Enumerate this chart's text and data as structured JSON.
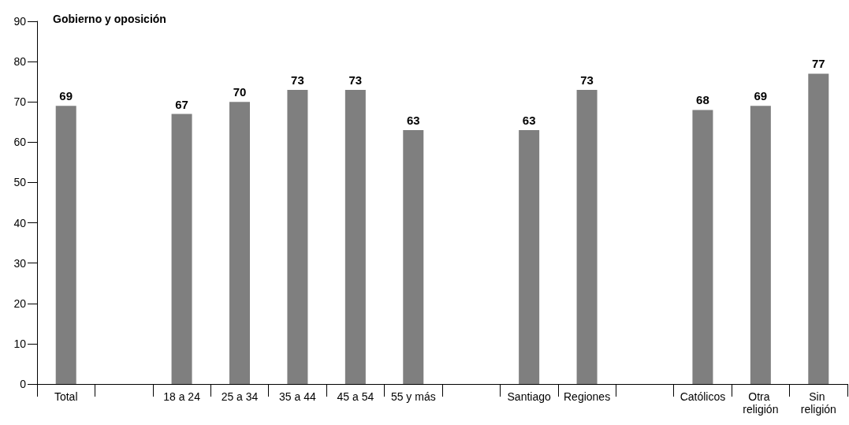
{
  "chart_data": {
    "type": "bar",
    "title": "Gobierno y oposición",
    "categories": [
      "Total",
      null,
      "18 a 24",
      "25 a 34",
      "35 a 44",
      "45 a 54",
      "55 y más",
      null,
      "Santiago",
      "Regiones",
      null,
      "Católicos",
      "Otra religión",
      "Sin religión"
    ],
    "values": [
      69,
      null,
      67,
      70,
      73,
      73,
      63,
      null,
      63,
      73,
      null,
      68,
      69,
      77
    ],
    "color": "#7f7f7f",
    "ylim": [
      0,
      90
    ],
    "yticks": [
      0,
      10,
      20,
      30,
      40,
      50,
      60,
      70,
      80,
      90
    ],
    "grid": false,
    "data_labels": true
  }
}
